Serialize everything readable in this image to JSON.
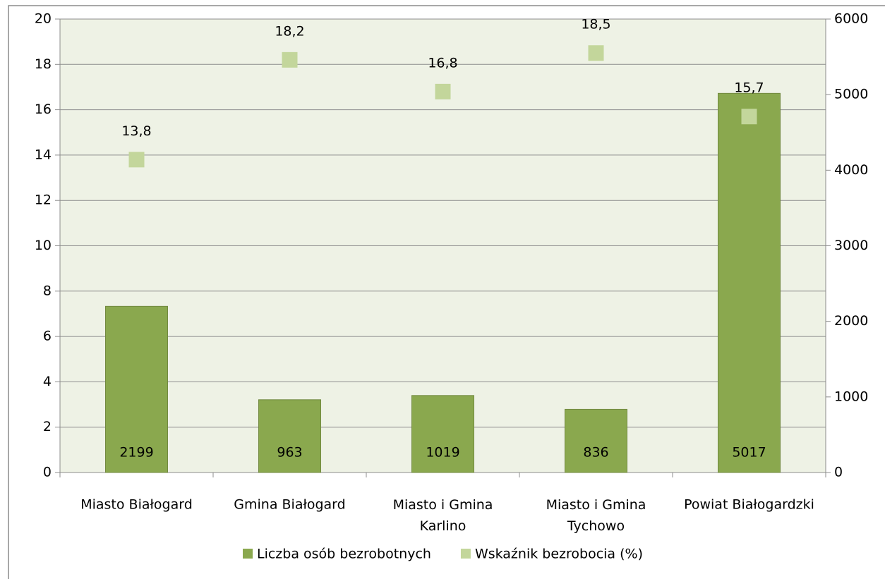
{
  "chart_data": {
    "type": "bar",
    "categories": [
      "Miasto Białogard",
      "Gmina Białogard",
      "Miasto i Gmina Karlino",
      "Miasto i Gmina Tychowo",
      "Powiat Białogardzki"
    ],
    "series": [
      {
        "name": "Liczba osób bezrobotnych",
        "type": "bar",
        "axis": "y2",
        "color": "#8aa84e",
        "values": [
          2199,
          963,
          1019,
          836,
          5017
        ]
      },
      {
        "name": "Wskaźnik bezrobocia (%)",
        "type": "scatter",
        "axis": "y",
        "color": "#c3d69b",
        "values": [
          13.8,
          18.2,
          16.8,
          18.5,
          15.7
        ],
        "value_labels": [
          "13,8",
          "18,2",
          "16,8",
          "18,5",
          "15,7"
        ]
      }
    ],
    "ylim": [
      0,
      20
    ],
    "yticks": [
      0,
      2,
      4,
      6,
      8,
      10,
      12,
      14,
      16,
      18,
      20
    ],
    "y2lim": [
      0,
      6000
    ],
    "y2ticks": [
      0,
      1000,
      2000,
      3000,
      4000,
      5000,
      6000
    ],
    "grid": true,
    "legend": "bottom"
  }
}
